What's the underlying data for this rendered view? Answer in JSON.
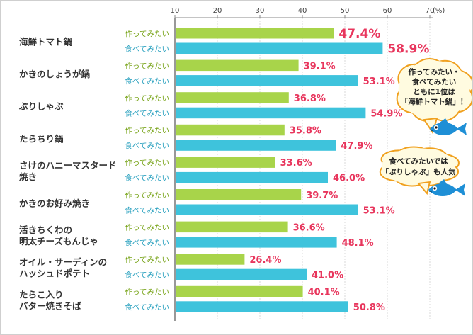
{
  "chart_data": {
    "type": "bar",
    "orientation": "horizontal",
    "unit": "(%)",
    "xlim": [
      10,
      70
    ],
    "ticks": [
      "10",
      "20",
      "30",
      "40",
      "50",
      "60",
      "70"
    ],
    "categories": [
      [
        "海鮮トマト鍋"
      ],
      [
        "かきのしょうが鍋"
      ],
      [
        "ぶりしゃぶ"
      ],
      [
        "たらちり鍋"
      ],
      [
        "さけのハニーマスタード",
        "焼き"
      ],
      [
        "かきのお好み焼き"
      ],
      [
        "活きちくわの",
        "明太チーズもんじゃ"
      ],
      [
        "オイル・サーディンの",
        "ハッシュドポテト"
      ],
      [
        "たらこ入り",
        "バター焼きそば"
      ]
    ],
    "series": [
      {
        "name": "作ってみたい",
        "color": "#a8d44a",
        "label_color": "#7aa51c",
        "values": [
          47.4,
          39.1,
          36.8,
          35.8,
          33.6,
          39.7,
          36.6,
          26.4,
          40.1
        ],
        "value_labels": [
          "47.4%",
          "39.1%",
          "36.8%",
          "35.8%",
          "33.6%",
          "39.7%",
          "36.6%",
          "26.4%",
          "40.1%"
        ]
      },
      {
        "name": "食べてみたい",
        "color": "#3ec3dc",
        "label_color": "#2aa1bf",
        "values": [
          58.9,
          53.1,
          54.9,
          47.9,
          46.0,
          53.1,
          48.1,
          41.0,
          50.8
        ],
        "value_labels": [
          "58.9%",
          "53.1%",
          "54.9%",
          "47.9%",
          "46.0%",
          "53.1%",
          "48.1%",
          "41.0%",
          "50.8%"
        ]
      }
    ],
    "value_color": "#e8365d",
    "highlight_index": 0,
    "annotations": [
      {
        "lines": [
          "作ってみたい・",
          "食べてみたい",
          "ともに1位は",
          "「海鮮トマト鍋」！"
        ]
      },
      {
        "lines": [
          "食べてみたいでは",
          "「ぶりしゃぶ」も人気"
        ]
      }
    ],
    "fish_icon": "fish-icon",
    "fish_color": "#1e8fd6"
  }
}
